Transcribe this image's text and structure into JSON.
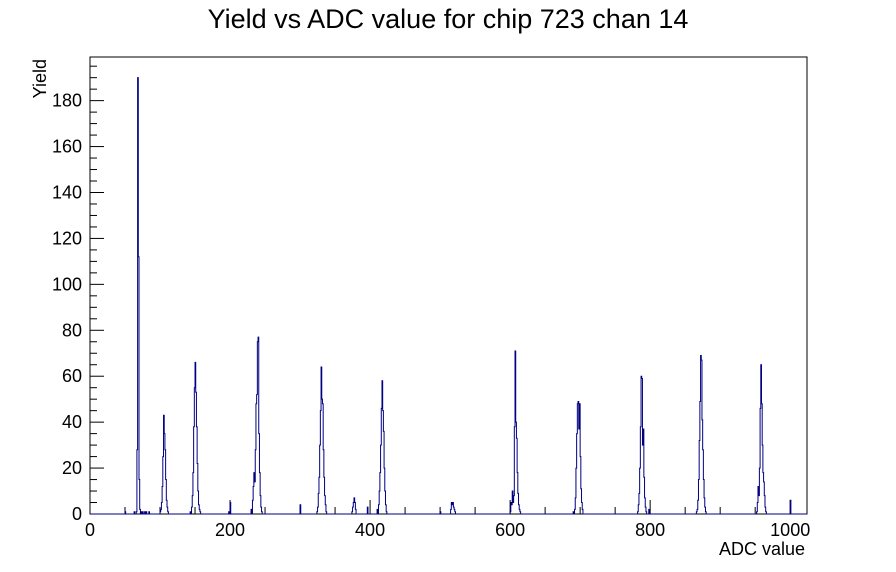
{
  "chart_data": {
    "type": "histogram",
    "title": "Yield vs ADC value for chip 723 chan 14",
    "xlabel": "ADC value",
    "ylabel": "Yield",
    "xlim": [
      0,
      1024
    ],
    "ylim": [
      0,
      199
    ],
    "x_ticks": [
      "0",
      "200",
      "400",
      "600",
      "800",
      "1000"
    ],
    "x_tick_values": [
      0,
      200,
      400,
      600,
      800,
      1000
    ],
    "y_ticks": [
      "0",
      "20",
      "40",
      "60",
      "80",
      "100",
      "120",
      "140",
      "160",
      "180"
    ],
    "y_tick_values": [
      0,
      20,
      40,
      60,
      80,
      100,
      120,
      140,
      160,
      180
    ],
    "bin_width": 1,
    "line_color": "#000080",
    "grid": false,
    "legend": "none",
    "bins": [
      [
        50,
        1
      ],
      [
        63,
        1
      ],
      [
        66,
        1
      ],
      [
        67,
        28
      ],
      [
        68,
        190
      ],
      [
        69,
        112
      ],
      [
        70,
        15
      ],
      [
        71,
        2
      ],
      [
        73,
        1
      ],
      [
        75,
        1
      ],
      [
        78,
        1
      ],
      [
        80,
        1
      ],
      [
        84,
        1
      ],
      [
        100,
        1
      ],
      [
        101,
        2
      ],
      [
        102,
        5
      ],
      [
        103,
        12
      ],
      [
        104,
        25
      ],
      [
        105,
        43
      ],
      [
        106,
        35
      ],
      [
        107,
        28
      ],
      [
        108,
        15
      ],
      [
        109,
        6
      ],
      [
        110,
        3
      ],
      [
        111,
        1
      ],
      [
        143,
        1
      ],
      [
        145,
        3
      ],
      [
        146,
        8
      ],
      [
        147,
        18
      ],
      [
        148,
        38
      ],
      [
        149,
        55
      ],
      [
        150,
        66
      ],
      [
        151,
        53
      ],
      [
        152,
        38
      ],
      [
        153,
        22
      ],
      [
        154,
        10
      ],
      [
        155,
        4
      ],
      [
        156,
        2
      ],
      [
        157,
        1
      ],
      [
        198,
        1
      ],
      [
        200,
        5
      ],
      [
        230,
        2
      ],
      [
        232,
        6
      ],
      [
        233,
        12
      ],
      [
        234,
        18
      ],
      [
        235,
        14
      ],
      [
        236,
        28
      ],
      [
        237,
        48
      ],
      [
        238,
        52
      ],
      [
        239,
        75
      ],
      [
        240,
        77
      ],
      [
        241,
        35
      ],
      [
        242,
        18
      ],
      [
        243,
        8
      ],
      [
        244,
        3
      ],
      [
        245,
        1
      ],
      [
        300,
        4
      ],
      [
        324,
        1
      ],
      [
        325,
        3
      ],
      [
        326,
        9
      ],
      [
        327,
        16
      ],
      [
        328,
        30
      ],
      [
        329,
        45
      ],
      [
        330,
        64
      ],
      [
        331,
        50
      ],
      [
        332,
        48
      ],
      [
        333,
        28
      ],
      [
        334,
        16
      ],
      [
        335,
        8
      ],
      [
        336,
        4
      ],
      [
        337,
        1
      ],
      [
        374,
        1
      ],
      [
        375,
        3
      ],
      [
        376,
        5
      ],
      [
        377,
        7
      ],
      [
        378,
        5
      ],
      [
        379,
        2
      ],
      [
        396,
        3
      ],
      [
        410,
        2
      ],
      [
        412,
        4
      ],
      [
        413,
        10
      ],
      [
        414,
        18
      ],
      [
        415,
        30
      ],
      [
        416,
        46
      ],
      [
        417,
        58
      ],
      [
        418,
        45
      ],
      [
        419,
        36
      ],
      [
        420,
        20
      ],
      [
        421,
        10
      ],
      [
        422,
        4
      ],
      [
        423,
        1
      ],
      [
        500,
        1
      ],
      [
        515,
        2
      ],
      [
        516,
        5
      ],
      [
        517,
        4
      ],
      [
        518,
        5
      ],
      [
        519,
        3
      ],
      [
        520,
        2
      ],
      [
        521,
        1
      ],
      [
        600,
        1
      ],
      [
        601,
        5
      ],
      [
        602,
        4
      ],
      [
        603,
        10
      ],
      [
        604,
        5
      ],
      [
        605,
        8
      ],
      [
        606,
        38
      ],
      [
        607,
        71
      ],
      [
        608,
        40
      ],
      [
        609,
        33
      ],
      [
        610,
        18
      ],
      [
        611,
        9
      ],
      [
        612,
        4
      ],
      [
        613,
        2
      ],
      [
        614,
        1
      ],
      [
        690,
        1
      ],
      [
        692,
        2
      ],
      [
        693,
        7
      ],
      [
        694,
        20
      ],
      [
        695,
        35
      ],
      [
        696,
        48
      ],
      [
        697,
        49
      ],
      [
        698,
        37
      ],
      [
        699,
        48
      ],
      [
        700,
        25
      ],
      [
        701,
        11
      ],
      [
        702,
        5
      ],
      [
        703,
        2
      ],
      [
        782,
        1
      ],
      [
        783,
        4
      ],
      [
        784,
        9
      ],
      [
        785,
        20
      ],
      [
        786,
        38
      ],
      [
        787,
        60
      ],
      [
        788,
        59
      ],
      [
        789,
        30
      ],
      [
        790,
        37
      ],
      [
        791,
        16
      ],
      [
        792,
        7
      ],
      [
        793,
        3
      ],
      [
        794,
        1
      ],
      [
        798,
        2
      ],
      [
        866,
        1
      ],
      [
        867,
        2
      ],
      [
        868,
        6
      ],
      [
        869,
        15
      ],
      [
        870,
        32
      ],
      [
        871,
        49
      ],
      [
        872,
        69
      ],
      [
        873,
        67
      ],
      [
        874,
        41
      ],
      [
        875,
        28
      ],
      [
        876,
        15
      ],
      [
        877,
        7
      ],
      [
        878,
        3
      ],
      [
        879,
        1
      ],
      [
        952,
        1
      ],
      [
        953,
        5
      ],
      [
        954,
        12
      ],
      [
        955,
        8
      ],
      [
        956,
        20
      ],
      [
        957,
        46
      ],
      [
        958,
        65
      ],
      [
        959,
        48
      ],
      [
        960,
        30
      ],
      [
        961,
        18
      ],
      [
        962,
        14
      ],
      [
        963,
        8
      ],
      [
        964,
        3
      ],
      [
        965,
        1
      ],
      [
        1000,
        6
      ]
    ]
  }
}
